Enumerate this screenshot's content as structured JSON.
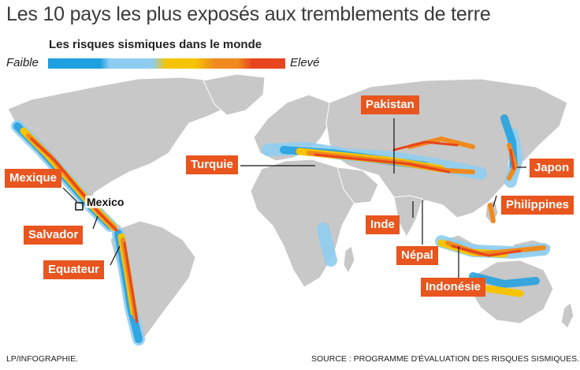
{
  "title": "Les 10 pays les plus exposés aux tremblements de terre",
  "legend": {
    "title": "Les risques sismiques dans le monde",
    "low": "Faible",
    "high": "Elevé",
    "scale_colors": [
      "#1e9fe0",
      "#8fcdf0",
      "#f5c400",
      "#f08a1e",
      "#e8451e"
    ]
  },
  "map_colors": {
    "land": "#c8c8c8",
    "ocean": "#ffffff",
    "label_bg": "#e8551e"
  },
  "countries": [
    "Mexique",
    "Salvador",
    "Equateur",
    "Turquie",
    "Pakistan",
    "Inde",
    "Népal",
    "Indonésie",
    "Philippines",
    "Japon"
  ],
  "city": "Mexico",
  "footer": {
    "credit": "LP/INFOGRAPHIE.",
    "source": "SOURCE : PROGRAMME D'ÉVALUATION DES RISQUES SISMIQUES."
  }
}
